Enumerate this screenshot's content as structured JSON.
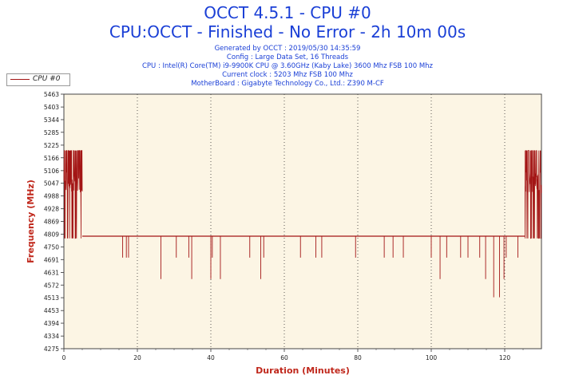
{
  "header": {
    "title_line1": "OCCT 4.5.1 - CPU #0",
    "title_line2": "CPU:OCCT - Finished - No Error - 2h 10m 00s",
    "info": [
      "Generated by OCCT : 2019/05/30 14:35:59",
      "Config : Large Data Set, 16 Threads",
      "CPU : Intel(R) Core(TM) i9-9900K CPU @ 3.60GHz (Kaby Lake) 3600 Mhz FSB 100 Mhz",
      "Current clock : 5203 Mhz FSB 100 Mhz",
      "MotherBoard : Gigabyte Technology Co., Ltd.: Z390 M-CF"
    ]
  },
  "colors": {
    "title": "#1a3fd6",
    "axis_label": "#c0281c",
    "series": "#a31515",
    "plot_bg": "#fcf5e4"
  },
  "chart_data": {
    "type": "line",
    "xlabel": "Duration (Minutes)",
    "ylabel": "Frequency (MHz)",
    "xlim": [
      0,
      130
    ],
    "ylim": [
      4275,
      5463
    ],
    "xticks": [
      0,
      20,
      40,
      60,
      80,
      100,
      120
    ],
    "yticks": [
      4275,
      4334,
      4394,
      4453,
      4513,
      4572,
      4631,
      4691,
      4750,
      4809,
      4869,
      4928,
      4988,
      5047,
      5106,
      5166,
      5225,
      5285,
      5344,
      5403,
      5463
    ],
    "grid": "vertical-dotted",
    "legend_position": "top-left",
    "series": [
      {
        "name": "CPU #0",
        "baseline": 4800,
        "burst_ranges": [
          {
            "x": [
              0,
              5
            ],
            "low": 4790,
            "high": 5200
          },
          {
            "x": [
              125.5,
              130
            ],
            "low": 4790,
            "high": 5200
          }
        ],
        "dips": [
          {
            "x": 16.0,
            "y": 4700
          },
          {
            "x": 17.0,
            "y": 4700
          },
          {
            "x": 17.6,
            "y": 4700
          },
          {
            "x": 26.4,
            "y": 4600
          },
          {
            "x": 30.6,
            "y": 4700
          },
          {
            "x": 34.0,
            "y": 4700
          },
          {
            "x": 34.8,
            "y": 4600
          },
          {
            "x": 40.0,
            "y": 4600
          },
          {
            "x": 40.4,
            "y": 4700
          },
          {
            "x": 42.6,
            "y": 4600
          },
          {
            "x": 50.6,
            "y": 4700
          },
          {
            "x": 53.6,
            "y": 4600
          },
          {
            "x": 54.4,
            "y": 4700
          },
          {
            "x": 64.4,
            "y": 4700
          },
          {
            "x": 68.6,
            "y": 4700
          },
          {
            "x": 70.2,
            "y": 4700
          },
          {
            "x": 79.4,
            "y": 4700
          },
          {
            "x": 87.2,
            "y": 4700
          },
          {
            "x": 89.6,
            "y": 4700
          },
          {
            "x": 92.4,
            "y": 4700
          },
          {
            "x": 100.0,
            "y": 4700
          },
          {
            "x": 102.4,
            "y": 4600
          },
          {
            "x": 104.2,
            "y": 4700
          },
          {
            "x": 108.0,
            "y": 4700
          },
          {
            "x": 110.0,
            "y": 4700
          },
          {
            "x": 113.2,
            "y": 4700
          },
          {
            "x": 114.8,
            "y": 4600
          },
          {
            "x": 117.0,
            "y": 4515
          },
          {
            "x": 118.6,
            "y": 4515
          },
          {
            "x": 119.8,
            "y": 4600
          },
          {
            "x": 120.4,
            "y": 4700
          },
          {
            "x": 123.6,
            "y": 4700
          }
        ]
      }
    ]
  }
}
